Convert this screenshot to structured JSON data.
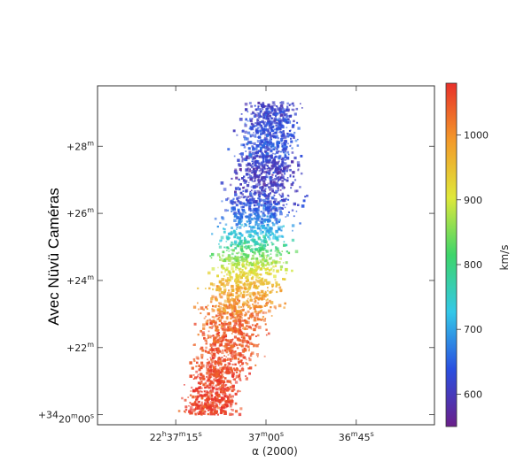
{
  "chart_data": {
    "type": "heatmap",
    "title": "",
    "side_annotation": "Avec Nüvü Caméras",
    "xlabel": "α (2000)",
    "ylabel": "",
    "x_ticks": [
      {
        "ra_s": 15,
        "pre": "22",
        "h": "h",
        "mid": "37",
        "m": "m",
        "sec": "15",
        "s": "s"
      },
      {
        "ra_s": 0,
        "pre": "37",
        "m": "m",
        "sec": "00",
        "s": "s"
      },
      {
        "ra_s": -15,
        "pre": "36",
        "m": "m",
        "sec": "45",
        "s": "s"
      }
    ],
    "y_ticks": [
      {
        "dec_arcmin": 28,
        "text": "+28",
        "sup": "m"
      },
      {
        "dec_arcmin": 26,
        "text": "+26",
        "sup": "m"
      },
      {
        "dec_arcmin": 24,
        "text": "+24",
        "sup": "m"
      },
      {
        "dec_arcmin": 22,
        "text": "+22",
        "sup": "m"
      },
      {
        "dec_arcmin": 20,
        "text": "+34",
        "sup1": "d",
        "text2": "20",
        "sup2": "m",
        "text3": "00",
        "sup3": "s"
      }
    ],
    "xlim_ra_s": [
      28,
      -28
    ],
    "ylim_dec_arcmin": [
      19.7,
      29.8
    ],
    "colorbar": {
      "label": "km/s",
      "range": [
        550,
        1080
      ],
      "ticks": [
        600,
        700,
        800,
        900,
        1000
      ],
      "colormap": [
        "#6a1f8a",
        "#2a4fe0",
        "#33c8e8",
        "#3dd56a",
        "#dfe83a",
        "#f39a2a",
        "#e8302a"
      ]
    },
    "velocity_profile": [
      {
        "dec_arcmin": 29.3,
        "ra_s": -1.0,
        "velocity": 605
      },
      {
        "dec_arcmin": 28.6,
        "ra_s": -0.5,
        "velocity": 630
      },
      {
        "dec_arcmin": 28.0,
        "ra_s": -0.5,
        "velocity": 640
      },
      {
        "dec_arcmin": 27.3,
        "ra_s": 0.0,
        "velocity": 600
      },
      {
        "dec_arcmin": 26.7,
        "ra_s": 0.5,
        "velocity": 610
      },
      {
        "dec_arcmin": 26.0,
        "ra_s": 1.5,
        "velocity": 650
      },
      {
        "dec_arcmin": 25.3,
        "ra_s": 2.0,
        "velocity": 740
      },
      {
        "dec_arcmin": 24.7,
        "ra_s": 2.5,
        "velocity": 850
      },
      {
        "dec_arcmin": 24.0,
        "ra_s": 3.5,
        "velocity": 950
      },
      {
        "dec_arcmin": 23.3,
        "ra_s": 4.5,
        "velocity": 1000
      },
      {
        "dec_arcmin": 22.7,
        "ra_s": 5.5,
        "velocity": 1040
      },
      {
        "dec_arcmin": 22.0,
        "ra_s": 6.5,
        "velocity": 1050
      },
      {
        "dec_arcmin": 21.3,
        "ra_s": 7.5,
        "velocity": 1060
      },
      {
        "dec_arcmin": 20.6,
        "ra_s": 8.5,
        "velocity": 1065
      },
      {
        "dec_arcmin": 20.0,
        "ra_s": 9.5,
        "velocity": 1070
      }
    ]
  }
}
